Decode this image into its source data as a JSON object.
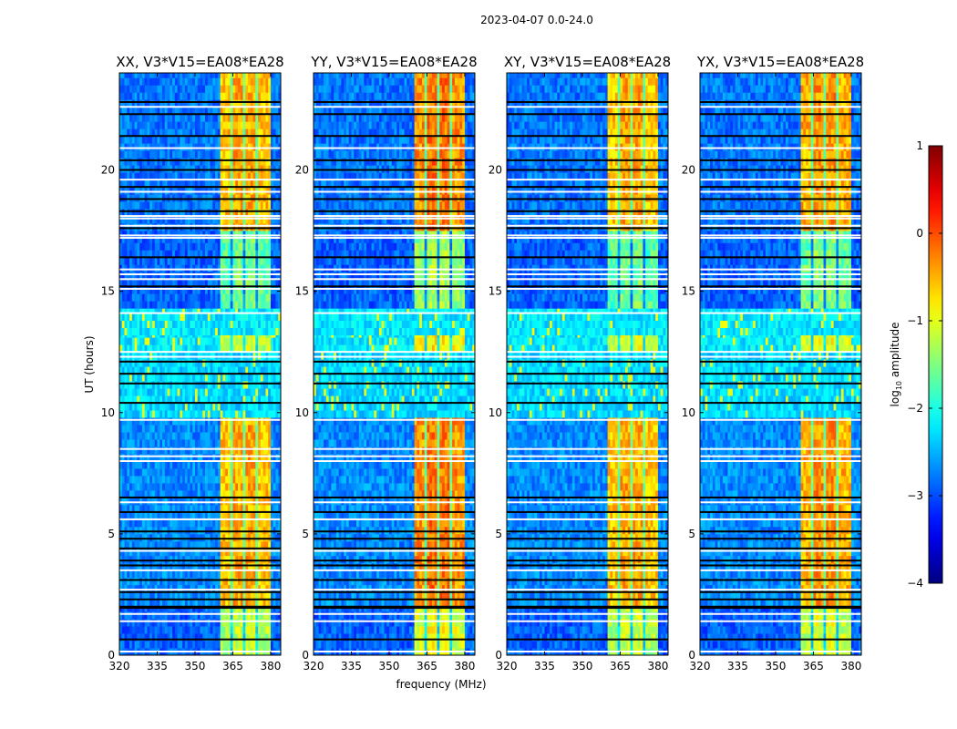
{
  "chart_data": {
    "type": "heatmap",
    "title": "2023-04-07 0.0-24.0",
    "xlabel": "frequency (MHz)",
    "ylabel": "UT (hours)",
    "xlim": [
      320,
      384
    ],
    "ylim": [
      0,
      24
    ],
    "xticks": [
      320,
      335,
      350,
      365,
      380
    ],
    "yticks": [
      0,
      5,
      10,
      15,
      20
    ],
    "panels": [
      {
        "title": "XX, V3*V15=EA08*EA28",
        "band_offset": 0.0
      },
      {
        "title": "YY, V3*V15=EA08*EA28",
        "band_offset": 0.25
      },
      {
        "title": "XY, V3*V15=EA08*EA28",
        "band_offset": 0.0
      },
      {
        "title": "YX, V3*V15=EA08*EA28",
        "band_offset": 0.1
      }
    ],
    "rfi_subbands_mhz": [
      [
        360.5,
        364.5
      ],
      [
        365.3,
        369.3
      ],
      [
        370.0,
        374.3
      ],
      [
        375.0,
        380.0
      ]
    ],
    "time_segments": [
      {
        "t": [
          0,
          2.0
        ],
        "background": -2.9,
        "band": -1.3
      },
      {
        "t": [
          2.0,
          9.8
        ],
        "background": -2.7,
        "band": -0.6
      },
      {
        "t": [
          9.8,
          12.5
        ],
        "background": -2.3,
        "band": -2.3
      },
      {
        "t": [
          12.5,
          13.2
        ],
        "background": -2.2,
        "band": -1.2
      },
      {
        "t": [
          13.2,
          14.3
        ],
        "background": -2.2,
        "band": -2.2
      },
      {
        "t": [
          14.3,
          17.5
        ],
        "background": -2.9,
        "band": -1.7
      },
      {
        "t": [
          17.5,
          24
        ],
        "background": -2.8,
        "band": -0.6
      }
    ],
    "flagged_rows_white_hours": [
      0.15,
      1.4,
      1.7,
      2.7,
      3.5,
      4.3,
      5.6,
      6.3,
      8.0,
      8.2,
      8.5,
      9.7,
      12.3,
      12.5,
      14.1,
      15.1,
      15.5,
      15.7,
      15.9,
      17.2,
      17.3,
      17.7,
      18.0,
      18.1,
      19.1,
      19.6,
      20.9,
      22.6
    ],
    "flagged_rows_black_hours": [
      0.65,
      1.95,
      2.0,
      2.3,
      2.6,
      3.1,
      3.7,
      3.9,
      4.4,
      4.8,
      5.1,
      5.9,
      6.5,
      10.4,
      11.2,
      11.6,
      12.1,
      15.2,
      16.4,
      17.6,
      18.3,
      18.8,
      19.3,
      20.0,
      20.4,
      21.4,
      22.3,
      22.8
    ],
    "colorbar": {
      "label_prefix": "log",
      "label_sub": "10",
      "label_suffix": " amplitude",
      "range": [
        -4,
        1
      ],
      "ticks": [
        1,
        0,
        -1,
        -2,
        -3,
        -4
      ],
      "tick_labels": [
        "1",
        "0",
        "−1",
        "−2",
        "−3",
        "−4"
      ],
      "colormap": "jet"
    }
  }
}
